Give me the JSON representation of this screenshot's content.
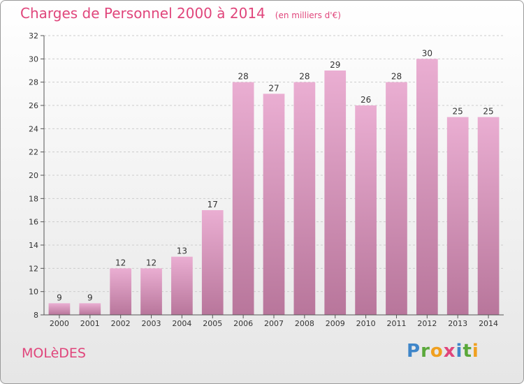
{
  "header": {
    "title": "Charges de Personnel 2000 à 2014",
    "subtitle": "(en milliers d'€)"
  },
  "footer": {
    "commune": "MOLèDES",
    "logo_letters": [
      {
        "ch": "P",
        "color": "#3f86c9"
      },
      {
        "ch": "r",
        "color": "#5aa83a"
      },
      {
        "ch": "o",
        "color": "#f0a020"
      },
      {
        "ch": "x",
        "color": "#e0457b"
      },
      {
        "ch": "i",
        "color": "#3f86c9"
      },
      {
        "ch": "t",
        "color": "#5aa83a"
      },
      {
        "ch": "i",
        "color": "#f0a020"
      }
    ]
  },
  "colors": {
    "bar_top": "#eaaed2",
    "bar_bottom": "#b8769b",
    "grid": "#cccccc",
    "axis": "#555555"
  },
  "chart_data": {
    "type": "bar",
    "categories": [
      "2000",
      "2001",
      "2002",
      "2003",
      "2004",
      "2005",
      "2006",
      "2007",
      "2008",
      "2009",
      "2010",
      "2011",
      "2012",
      "2013",
      "2014"
    ],
    "values": [
      9,
      9,
      12,
      12,
      13,
      17,
      28,
      27,
      28,
      29,
      26,
      28,
      30,
      25,
      25
    ],
    "ylim": [
      8,
      32
    ],
    "yticks": [
      8,
      10,
      12,
      14,
      16,
      18,
      20,
      22,
      24,
      26,
      28,
      30,
      32
    ],
    "grid": true,
    "data_labels": true
  }
}
